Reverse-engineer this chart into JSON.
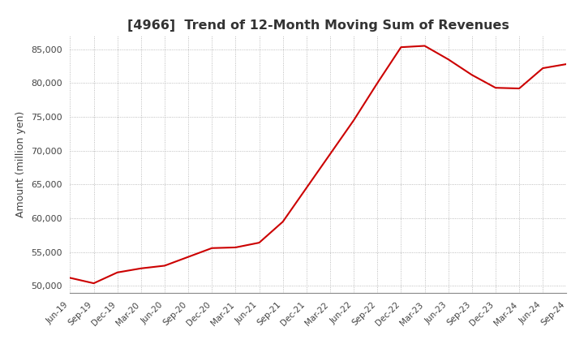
{
  "title": "[4966]  Trend of 12-Month Moving Sum of Revenues",
  "ylabel": "Amount (million yen)",
  "line_color": "#cc0000",
  "background_color": "#ffffff",
  "grid_color": "#aaaaaa",
  "ylim": [
    49000,
    87000
  ],
  "yticks": [
    50000,
    55000,
    60000,
    65000,
    70000,
    75000,
    80000,
    85000
  ],
  "x_labels": [
    "Jun-19",
    "Sep-19",
    "Dec-19",
    "Mar-20",
    "Jun-20",
    "Sep-20",
    "Dec-20",
    "Mar-21",
    "Jun-21",
    "Sep-21",
    "Dec-21",
    "Mar-22",
    "Jun-22",
    "Sep-22",
    "Dec-22",
    "Mar-23",
    "Jun-23",
    "Sep-23",
    "Dec-23",
    "Mar-24",
    "Jun-24",
    "Sep-24"
  ],
  "values": [
    51200,
    50400,
    52000,
    52600,
    53000,
    54300,
    55600,
    55700,
    56400,
    59500,
    64500,
    69500,
    74500,
    80000,
    85300,
    85500,
    83500,
    81200,
    79300,
    79200,
    82200,
    82800
  ]
}
